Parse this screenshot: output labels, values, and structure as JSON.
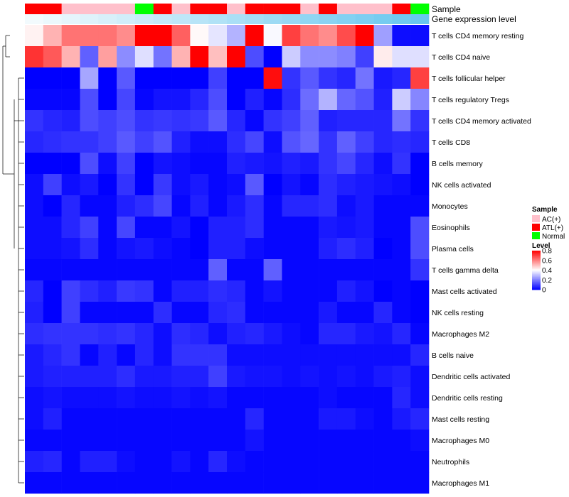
{
  "chart_data": {
    "type": "heatmap",
    "annotation_tracks": [
      "Sample",
      "Gene expression level"
    ],
    "sample_groups": [
      "ATL(+)",
      "ATL(+)",
      "AC(+)",
      "AC(+)",
      "AC(+)",
      "AC(+)",
      "Normal",
      "ATL(+)",
      "AC(+)",
      "ATL(+)",
      "ATL(+)",
      "AC(+)",
      "ATL(+)",
      "ATL(+)",
      "ATL(+)",
      "AC(+)",
      "ATL(+)",
      "AC(+)",
      "AC(+)",
      "AC(+)",
      "ATL(+)",
      "Normal"
    ],
    "sample_colors": {
      "AC(+)": "#ffc0cb",
      "ATL(+)": "#ff0000",
      "Normal": "#00ff00"
    },
    "expression_start_color": "#f2fafd",
    "expression_end_color": "#69c7ef",
    "color_scale": {
      "low": "#0000ff",
      "mid": "#ffffff",
      "high": "#ff0000",
      "min": 0,
      "mid_value": 0.4,
      "max": 0.8
    },
    "rows": [
      "T cells CD4 memory resting",
      "T cells CD4 naive",
      "T cells follicular helper",
      "T cells regulatory  Tregs",
      "T cells CD4 memory activated",
      "T cells CD8",
      "B cells memory",
      "NK cells activated",
      "Monocytes",
      "Eosinophils",
      "Plasma cells",
      "T cells gamma delta",
      "Mast cells activated",
      "NK cells resting",
      "Macrophages M2",
      "B cells naive",
      "Dendritic cells activated",
      "Dendritic cells resting",
      "Mast cells resting",
      "Macrophages M0",
      "Neutrophils",
      "Macrophages M1"
    ],
    "values": [
      [
        0.42,
        0.52,
        0.62,
        0.62,
        0.62,
        0.58,
        0.8,
        0.8,
        0.65,
        0.41,
        0.36,
        0.28,
        0.8,
        0.39,
        0.7,
        0.62,
        0.58,
        0.68,
        0.8,
        0.25,
        0.02,
        0.02
      ],
      [
        0.72,
        0.66,
        0.52,
        0.15,
        0.55,
        0.22,
        0.35,
        0.18,
        0.52,
        0.8,
        0.5,
        0.8,
        0.12,
        0.0,
        0.32,
        0.22,
        0.22,
        0.2,
        0.1,
        0.43,
        0.35,
        0.35
      ],
      [
        0.0,
        0.0,
        0.0,
        0.26,
        0.0,
        0.14,
        0.0,
        0.0,
        0.0,
        0.0,
        0.1,
        0.0,
        0.0,
        0.78,
        0.08,
        0.14,
        0.08,
        0.06,
        0.18,
        0.04,
        0.06,
        0.7
      ],
      [
        0.01,
        0.01,
        0.01,
        0.12,
        0.0,
        0.11,
        0.01,
        0.03,
        0.03,
        0.06,
        0.12,
        0.0,
        0.05,
        0.01,
        0.07,
        0.17,
        0.28,
        0.16,
        0.13,
        0.05,
        0.32,
        0.21
      ],
      [
        0.08,
        0.06,
        0.05,
        0.12,
        0.1,
        0.12,
        0.08,
        0.09,
        0.08,
        0.09,
        0.14,
        0.06,
        0.01,
        0.08,
        0.1,
        0.15,
        0.05,
        0.06,
        0.06,
        0.06,
        0.18,
        0.08
      ],
      [
        0.06,
        0.07,
        0.08,
        0.08,
        0.1,
        0.14,
        0.1,
        0.13,
        0.05,
        0.02,
        0.02,
        0.07,
        0.11,
        0.02,
        0.13,
        0.16,
        0.08,
        0.15,
        0.1,
        0.06,
        0.07,
        0.06
      ],
      [
        0.0,
        0.0,
        0.0,
        0.12,
        0.02,
        0.1,
        0.0,
        0.03,
        0.02,
        0.01,
        0.01,
        0.05,
        0.04,
        0.03,
        0.05,
        0.04,
        0.08,
        0.11,
        0.06,
        0.02,
        0.08,
        0.0
      ],
      [
        0.02,
        0.1,
        0.02,
        0.04,
        0.0,
        0.08,
        0.0,
        0.09,
        0.02,
        0.04,
        0.01,
        0.02,
        0.14,
        0.0,
        0.03,
        0.01,
        0.07,
        0.05,
        0.04,
        0.03,
        0.02,
        0.0
      ],
      [
        0.02,
        0.0,
        0.06,
        0.01,
        0.01,
        0.05,
        0.07,
        0.11,
        0.01,
        0.05,
        0.01,
        0.04,
        0.07,
        0.01,
        0.06,
        0.06,
        0.07,
        0.02,
        0.04,
        0.01,
        0.01,
        0.01
      ],
      [
        0.02,
        0.02,
        0.06,
        0.1,
        0.01,
        0.11,
        0.01,
        0.01,
        0.03,
        0.0,
        0.05,
        0.05,
        0.07,
        0.01,
        0.01,
        0.01,
        0.04,
        0.03,
        0.04,
        0.01,
        0.01,
        0.12
      ],
      [
        0.02,
        0.02,
        0.03,
        0.07,
        0.01,
        0.03,
        0.04,
        0.02,
        0.01,
        0.0,
        0.05,
        0.05,
        0.02,
        0.01,
        0.01,
        0.01,
        0.05,
        0.07,
        0.05,
        0.0,
        0.01,
        0.12
      ],
      [
        0.01,
        0.01,
        0.01,
        0.01,
        0.01,
        0.01,
        0.01,
        0.01,
        0.01,
        0.01,
        0.15,
        0.01,
        0.01,
        0.15,
        0.01,
        0.01,
        0.01,
        0.01,
        0.01,
        0.01,
        0.01,
        0.08
      ],
      [
        0.06,
        0.0,
        0.1,
        0.07,
        0.05,
        0.09,
        0.08,
        0.01,
        0.05,
        0.05,
        0.07,
        0.06,
        0.01,
        0.03,
        0.01,
        0.01,
        0.01,
        0.05,
        0.03,
        0.0,
        0.01,
        0.0
      ],
      [
        0.05,
        0.0,
        0.1,
        0.01,
        0.01,
        0.01,
        0.01,
        0.07,
        0.01,
        0.01,
        0.06,
        0.07,
        0.01,
        0.01,
        0.01,
        0.01,
        0.04,
        0.01,
        0.01,
        0.06,
        0.01,
        0.0
      ],
      [
        0.07,
        0.08,
        0.08,
        0.08,
        0.07,
        0.08,
        0.06,
        0.02,
        0.07,
        0.06,
        0.02,
        0.05,
        0.06,
        0.04,
        0.02,
        0.01,
        0.06,
        0.06,
        0.04,
        0.03,
        0.06,
        0.01
      ],
      [
        0.04,
        0.06,
        0.08,
        0.01,
        0.05,
        0.01,
        0.06,
        0.02,
        0.08,
        0.08,
        0.08,
        0.02,
        0.02,
        0.02,
        0.02,
        0.02,
        0.02,
        0.02,
        0.02,
        0.02,
        0.02,
        0.06
      ],
      [
        0.04,
        0.05,
        0.05,
        0.05,
        0.05,
        0.07,
        0.04,
        0.04,
        0.05,
        0.05,
        0.1,
        0.04,
        0.03,
        0.03,
        0.02,
        0.03,
        0.02,
        0.03,
        0.02,
        0.04,
        0.05,
        0.02
      ],
      [
        0.02,
        0.03,
        0.02,
        0.02,
        0.02,
        0.03,
        0.02,
        0.02,
        0.03,
        0.02,
        0.03,
        0.01,
        0.01,
        0.01,
        0.01,
        0.01,
        0.02,
        0.01,
        0.01,
        0.01,
        0.06,
        0.02
      ],
      [
        0.02,
        0.05,
        0.01,
        0.01,
        0.01,
        0.01,
        0.01,
        0.01,
        0.01,
        0.01,
        0.01,
        0.01,
        0.06,
        0.01,
        0.01,
        0.01,
        0.04,
        0.04,
        0.02,
        0.01,
        0.04,
        0.06
      ],
      [
        0.01,
        0.01,
        0.01,
        0.01,
        0.01,
        0.01,
        0.01,
        0.01,
        0.01,
        0.01,
        0.01,
        0.01,
        0.03,
        0.01,
        0.01,
        0.01,
        0.01,
        0.01,
        0.01,
        0.01,
        0.01,
        0.02
      ],
      [
        0.05,
        0.06,
        0.01,
        0.05,
        0.05,
        0.02,
        0.01,
        0.01,
        0.03,
        0.01,
        0.06,
        0.02,
        0.01,
        0.01,
        0.01,
        0.01,
        0.01,
        0.01,
        0.01,
        0.01,
        0.01,
        0.01
      ],
      [
        0.01,
        0.01,
        0.01,
        0.01,
        0.01,
        0.01,
        0.01,
        0.01,
        0.01,
        0.01,
        0.01,
        0.01,
        0.01,
        0.01,
        0.01,
        0.01,
        0.01,
        0.01,
        0.01,
        0.01,
        0.01,
        0.01
      ]
    ],
    "legend": {
      "sample_title": "Sample",
      "sample_entries": [
        "AC(+)",
        "ATL(+)",
        "Normal"
      ],
      "level_title": "Level",
      "level_ticks": [
        "0.8",
        "0.6",
        "0.4",
        "0.2",
        "0"
      ]
    }
  }
}
